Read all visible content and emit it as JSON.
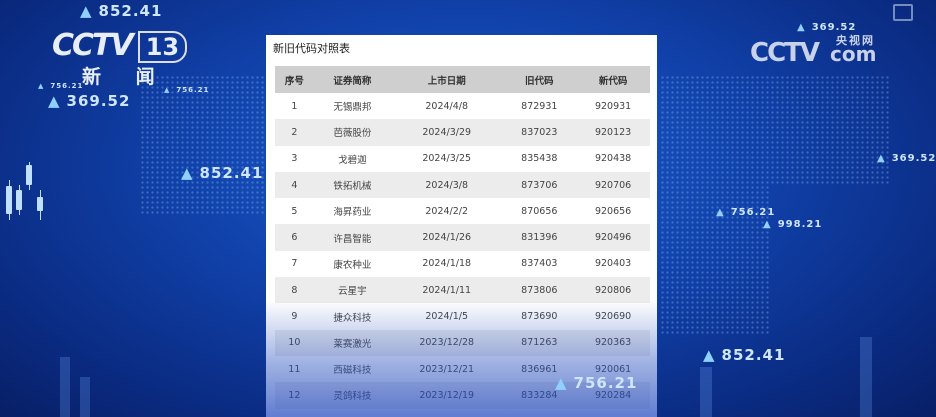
{
  "brand": {
    "channel_logo": "CCTV",
    "channel_number": "13",
    "channel_name": "新 闻",
    "watermark_logo": "CCTV",
    "watermark_cn": "央视网",
    "watermark_com": "com"
  },
  "tickers": [
    "852.41",
    "756.21",
    "369.52",
    "756.21",
    "852.41",
    "369.52",
    "369.52",
    "756.21",
    "998.21",
    "852.41",
    "756.21"
  ],
  "panel": {
    "title": "新旧代码对照表",
    "columns": [
      "序号",
      "证券简称",
      "上市日期",
      "旧代码",
      "新代码"
    ],
    "rows": [
      [
        "1",
        "无锡鼎邦",
        "2024/4/8",
        "872931",
        "920931"
      ],
      [
        "2",
        "芭薇股份",
        "2024/3/29",
        "837023",
        "920123"
      ],
      [
        "3",
        "戈碧迦",
        "2024/3/25",
        "835438",
        "920438"
      ],
      [
        "4",
        "铁拓机械",
        "2024/3/8",
        "873706",
        "920706"
      ],
      [
        "5",
        "海昇药业",
        "2024/2/2",
        "870656",
        "920656"
      ],
      [
        "6",
        "许昌智能",
        "2024/1/26",
        "831396",
        "920496"
      ],
      [
        "7",
        "康农种业",
        "2024/1/18",
        "837403",
        "920403"
      ],
      [
        "8",
        "云星宇",
        "2024/1/11",
        "873806",
        "920806"
      ],
      [
        "9",
        "捷众科技",
        "2024/1/5",
        "873690",
        "920690"
      ],
      [
        "10",
        "莱赛激光",
        "2023/12/28",
        "871263",
        "920363"
      ],
      [
        "11",
        "西磁科技",
        "2023/12/21",
        "836961",
        "920061"
      ],
      [
        "12",
        "灵鸽科技",
        "2023/12/19",
        "833284",
        "920284"
      ]
    ]
  }
}
